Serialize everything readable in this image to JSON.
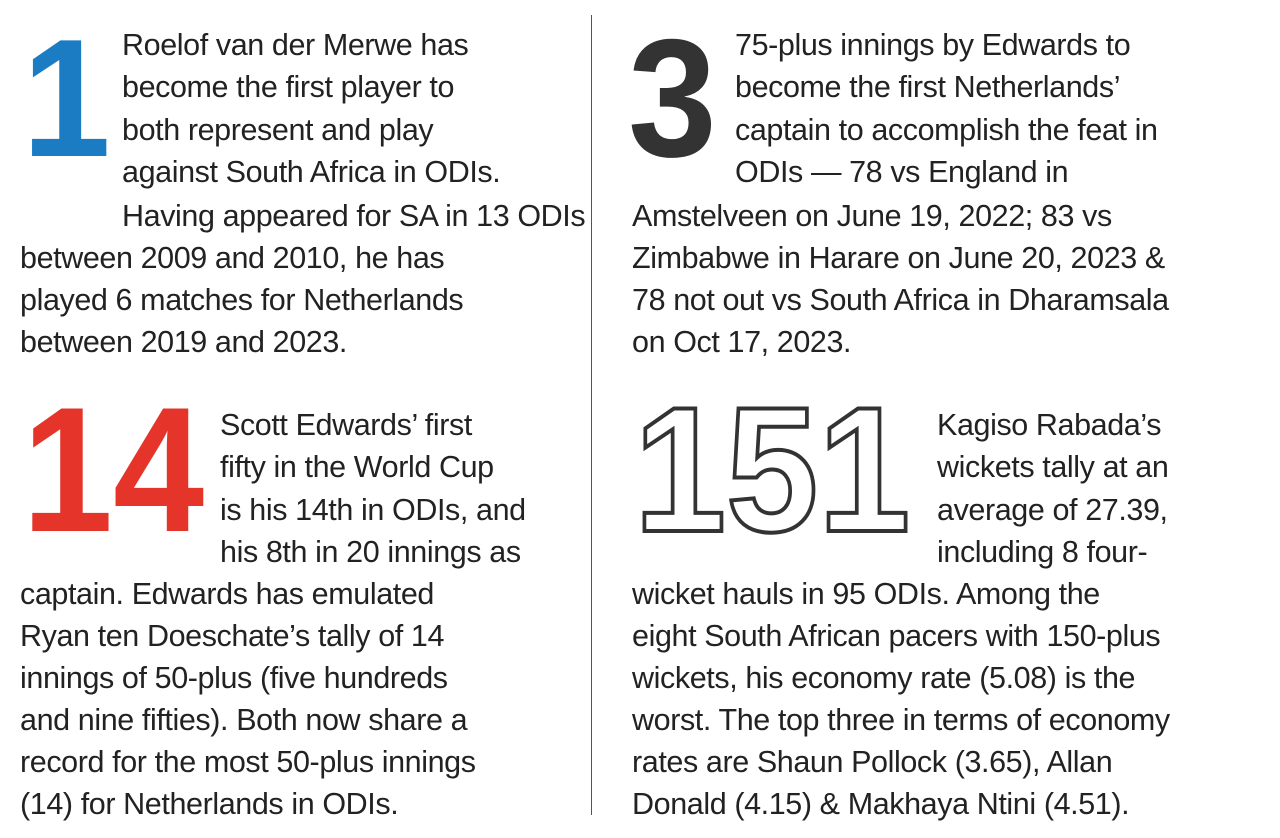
{
  "colors": {
    "one": "#1b7cc4",
    "three": "#333333",
    "fourteen": "#e5352b",
    "outline": "#333333",
    "text": "#222222"
  },
  "blocks": [
    {
      "number": "1",
      "lines": [
        "Roelof van der Merwe has",
        "become the first player to",
        "both represent and play",
        "against South Africa in ODIs.",
        "Having appeared for SA in 13 ODIs",
        "between 2009 and 2010, he has",
        "played 6 matches for Netherlands",
        "between 2019 and 2023."
      ]
    },
    {
      "number": "3",
      "lines": [
        "75-plus innings by Edwards to",
        "become the first Netherlands’",
        "captain to accomplish the feat in",
        "ODIs — 78 vs England in",
        "Amstelveen on June 19, 2022; 83 vs",
        "Zimbabwe in Harare on June 20, 2023 &",
        "78 not out vs South Africa in Dharamsala",
        "on Oct 17, 2023."
      ]
    },
    {
      "number": "14",
      "lines": [
        "Scott Edwards’ first",
        "fifty in the World Cup",
        "is his 14th in ODIs, and",
        "his 8th in 20 innings as",
        "captain. Edwards has emulated",
        "Ryan ten Doeschate’s tally of 14",
        "innings of 50-plus (five hundreds",
        "and nine fifties). Both now share a",
        "record for the most 50-plus innings",
        "(14) for Netherlands in ODIs."
      ]
    },
    {
      "number": "151",
      "lines": [
        "Kagiso Rabada’s",
        "wickets tally at an",
        "average of 27.39,",
        "including 8 four-",
        "wicket hauls in 95 ODIs. Among the",
        "eight South African pacers with 150-plus",
        "wickets, his economy rate (5.08) is the",
        "worst. The top three in terms of economy",
        "rates are Shaun Pollock (3.65), Allan",
        "Donald (4.15) & Makhaya Ntini (4.51)."
      ]
    }
  ]
}
